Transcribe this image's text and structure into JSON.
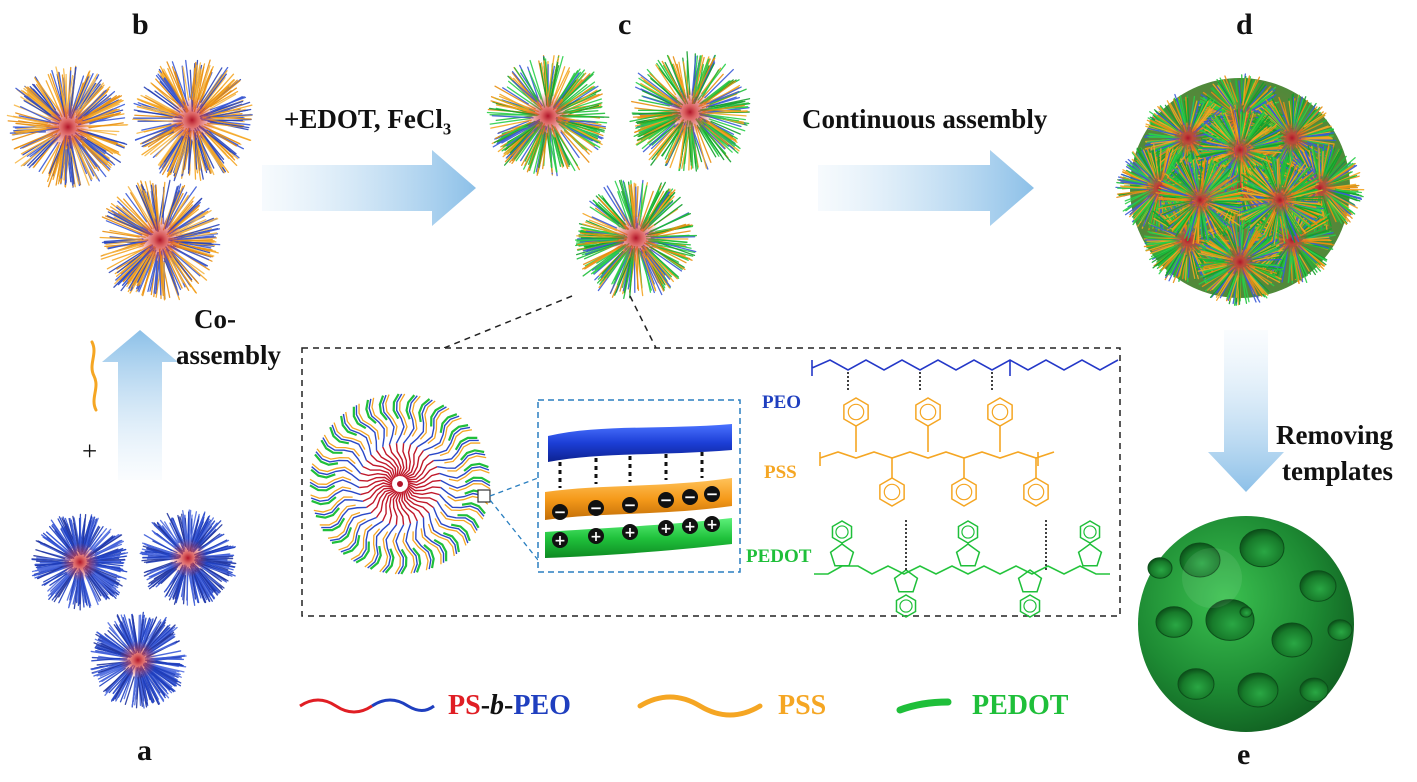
{
  "panels": {
    "a": "a",
    "b": "b",
    "c": "c",
    "d": "d",
    "e": "e"
  },
  "steps": {
    "edot_prefix": "+",
    "edot_text": "EDOT, FeCl",
    "edot_sub": "3",
    "continuous": "Continuous assembly",
    "co_line1": "Co-",
    "co_line2": "assembly",
    "removing_line1": "Removing",
    "removing_line2": "templates",
    "plus": "+"
  },
  "inset": {
    "peo": "PEO",
    "pss": "PSS",
    "pedot": "PEDOT",
    "charge_negative": "−",
    "charge_positive": "+"
  },
  "legend": {
    "ps": "PS",
    "dash1": "-",
    "b": "b",
    "dash2": "-",
    "peo": "PEO",
    "pss": "PSS",
    "pedot": "PEDOT"
  },
  "colors": {
    "ps_red": "#e01e24",
    "peo_blue": "#1f3fbf",
    "pss_orange": "#f5a623",
    "pedot_green": "#1fbf3a",
    "arrow_blue": "#8fc3ea",
    "bowl_green": "#1e8f35"
  }
}
